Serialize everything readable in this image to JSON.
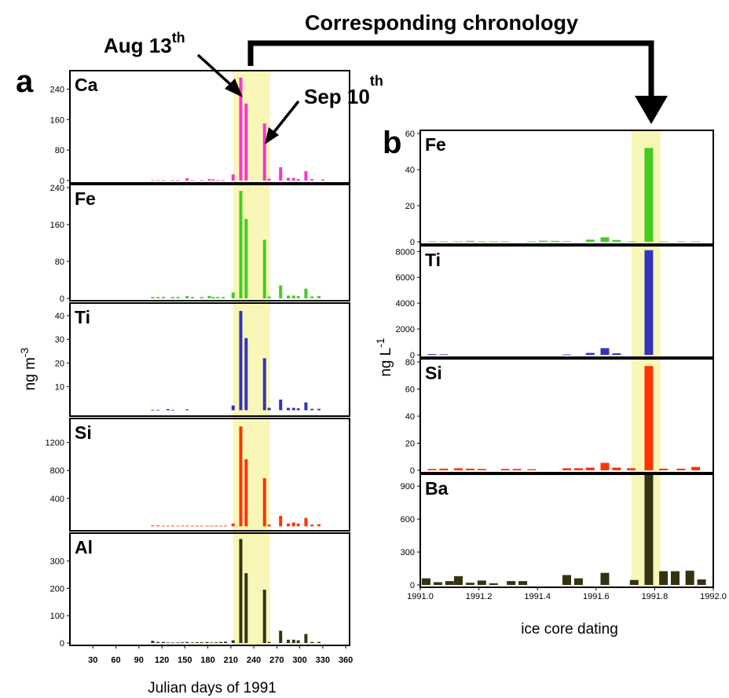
{
  "title": "Corresponding chronology",
  "annotations": {
    "aug": "Aug 13",
    "aug_sup": "th",
    "sep": "Sep 10",
    "sep_sup": "th"
  },
  "colors": {
    "Ca": "#ff33cc",
    "Fe": "#44cc22",
    "Ti": "#3333bb",
    "Si": "#ff3300",
    "Al": "#333311",
    "Ba": "#333311",
    "highlight": "#f9f7b8"
  },
  "chart_data": [
    {
      "panel": "a",
      "type": "bar",
      "xlabel": "Julian days of 1991",
      "ylabel": "ng m",
      "ylabel_sup": "-3",
      "xticks": [
        30,
        60,
        90,
        120,
        150,
        180,
        210,
        240,
        270,
        300,
        330,
        360
      ],
      "xlim": [
        0,
        365
      ],
      "highlight": [
        213,
        261
      ],
      "subplots": [
        {
          "element": "Ca",
          "ylim": [
            0,
            280
          ],
          "yticks": [
            0,
            80,
            160,
            240
          ],
          "data": [
            [
              108,
              1
            ],
            [
              115,
              1
            ],
            [
              122,
              1
            ],
            [
              134,
              1
            ],
            [
              141,
              1
            ],
            [
              153,
              6
            ],
            [
              160,
              1
            ],
            [
              172,
              1
            ],
            [
              182,
              4
            ],
            [
              187,
              3
            ],
            [
              193,
              1
            ],
            [
              200,
              1
            ],
            [
              213,
              16
            ],
            [
              223,
              270
            ],
            [
              230,
              202
            ],
            [
              254,
              150
            ],
            [
              260,
              5
            ],
            [
              275,
              35
            ],
            [
              285,
              7
            ],
            [
              292,
              7
            ],
            [
              298,
              4
            ],
            [
              308,
              25
            ],
            [
              316,
              4
            ],
            [
              330,
              3
            ]
          ]
        },
        {
          "element": "Fe",
          "ylim": [
            0,
            240
          ],
          "yticks": [
            0,
            80,
            160,
            240
          ],
          "data": [
            [
              108,
              3
            ],
            [
              115,
              3
            ],
            [
              122,
              3
            ],
            [
              134,
              3
            ],
            [
              141,
              3
            ],
            [
              153,
              5
            ],
            [
              160,
              3
            ],
            [
              172,
              3
            ],
            [
              182,
              5
            ],
            [
              187,
              3
            ],
            [
              193,
              3
            ],
            [
              200,
              3
            ],
            [
              213,
              13
            ],
            [
              223,
              233
            ],
            [
              230,
              172
            ],
            [
              254,
              127
            ],
            [
              260,
              4
            ],
            [
              275,
              28
            ],
            [
              285,
              6
            ],
            [
              292,
              6
            ],
            [
              298,
              5
            ],
            [
              308,
              21
            ],
            [
              316,
              4
            ],
            [
              325,
              5
            ]
          ]
        },
        {
          "element": "Ti",
          "ylim": [
            -1.5,
            44
          ],
          "yticks": [
            10,
            20,
            30,
            40
          ],
          "data": [
            [
              108,
              0.2
            ],
            [
              115,
              0.2
            ],
            [
              128,
              0.5
            ],
            [
              134,
              0.2
            ],
            [
              153,
              0.4
            ],
            [
              213,
              2
            ],
            [
              223,
              42
            ],
            [
              230,
              30.5
            ],
            [
              254,
              22
            ],
            [
              260,
              1
            ],
            [
              275,
              4.5
            ],
            [
              285,
              1
            ],
            [
              292,
              1
            ],
            [
              298,
              0.8
            ],
            [
              308,
              3.3
            ],
            [
              316,
              0.6
            ],
            [
              325,
              0.6
            ]
          ]
        },
        {
          "element": "Si",
          "ylim": [
            -30,
            1500
          ],
          "yticks": [
            400,
            800,
            1200
          ],
          "data": [
            [
              108,
              12
            ],
            [
              115,
              12
            ],
            [
              122,
              8
            ],
            [
              128,
              8
            ],
            [
              134,
              10
            ],
            [
              141,
              8
            ],
            [
              147,
              10
            ],
            [
              153,
              10
            ],
            [
              160,
              8
            ],
            [
              166,
              10
            ],
            [
              172,
              8
            ],
            [
              179,
              10
            ],
            [
              185,
              8
            ],
            [
              191,
              10
            ],
            [
              197,
              8
            ],
            [
              203,
              10
            ],
            [
              213,
              40
            ],
            [
              223,
              1430
            ],
            [
              230,
              960
            ],
            [
              254,
              690
            ],
            [
              260,
              25
            ],
            [
              275,
              150
            ],
            [
              285,
              40
            ],
            [
              292,
              55
            ],
            [
              298,
              40
            ],
            [
              308,
              120
            ],
            [
              316,
              25
            ],
            [
              325,
              30
            ]
          ]
        },
        {
          "element": "Al",
          "ylim": [
            0,
            390
          ],
          "yticks": [
            0,
            100,
            200,
            300
          ],
          "data": [
            [
              108,
              8
            ],
            [
              115,
              4
            ],
            [
              122,
              4
            ],
            [
              128,
              2
            ],
            [
              134,
              2
            ],
            [
              141,
              2
            ],
            [
              147,
              3
            ],
            [
              153,
              4
            ],
            [
              160,
              2
            ],
            [
              166,
              3
            ],
            [
              172,
              3
            ],
            [
              179,
              4
            ],
            [
              185,
              2
            ],
            [
              191,
              3
            ],
            [
              197,
              4
            ],
            [
              203,
              5
            ],
            [
              213,
              10
            ],
            [
              223,
              380
            ],
            [
              230,
              255
            ],
            [
              254,
              195
            ],
            [
              260,
              4
            ],
            [
              275,
              45
            ],
            [
              285,
              12
            ],
            [
              292,
              12
            ],
            [
              298,
              10
            ],
            [
              308,
              33
            ],
            [
              316,
              4
            ],
            [
              325,
              4
            ]
          ]
        }
      ]
    },
    {
      "panel": "b",
      "type": "bar",
      "xlabel": "ice core dating",
      "ylabel": "ng L",
      "ylabel_sup": "-1",
      "xticks": [
        "1991.0",
        "1991.2",
        "1991.4",
        "1991.6",
        "1991.8",
        "1992.0"
      ],
      "xlim": [
        1991.0,
        1992.0
      ],
      "highlight": [
        1991.72,
        1991.82
      ],
      "subplots": [
        {
          "element": "Fe",
          "ylim": [
            0,
            60
          ],
          "yticks": [
            0,
            20,
            40,
            60
          ],
          "data": [
            [
              1991.04,
              0.2
            ],
            [
              1991.08,
              0.2
            ],
            [
              1991.13,
              0.2
            ],
            [
              1991.17,
              0.5
            ],
            [
              1991.21,
              0.2
            ],
            [
              1991.25,
              0.2
            ],
            [
              1991.29,
              0.2
            ],
            [
              1991.38,
              0.2
            ],
            [
              1991.42,
              0.6
            ],
            [
              1991.46,
              0.5
            ],
            [
              1991.5,
              0.3
            ],
            [
              1991.58,
              1.2
            ],
            [
              1991.63,
              2.5
            ],
            [
              1991.67,
              1
            ],
            [
              1991.72,
              0.2
            ],
            [
              1991.78,
              52
            ],
            [
              1991.83,
              0.2
            ],
            [
              1991.89,
              0.2
            ],
            [
              1991.94,
              0.2
            ]
          ]
        },
        {
          "element": "Ti",
          "ylim": [
            0,
            8200
          ],
          "yticks": [
            0,
            2000,
            4000,
            6000,
            8000
          ],
          "data": [
            [
              1991.04,
              60
            ],
            [
              1991.08,
              40
            ],
            [
              1991.5,
              30
            ],
            [
              1991.58,
              150
            ],
            [
              1991.63,
              520
            ],
            [
              1991.67,
              120
            ],
            [
              1991.78,
              8100
            ]
          ]
        },
        {
          "element": "Si",
          "ylim": [
            0,
            80
          ],
          "yticks": [
            0,
            20,
            40,
            60,
            80
          ],
          "data": [
            [
              1991.04,
              1
            ],
            [
              1991.08,
              1.2
            ],
            [
              1991.13,
              1.5
            ],
            [
              1991.17,
              1.2
            ],
            [
              1991.21,
              1
            ],
            [
              1991.29,
              1
            ],
            [
              1991.33,
              1
            ],
            [
              1991.38,
              0.8
            ],
            [
              1991.5,
              1.5
            ],
            [
              1991.54,
              1.5
            ],
            [
              1991.58,
              2
            ],
            [
              1991.63,
              5.5
            ],
            [
              1991.67,
              2
            ],
            [
              1991.72,
              1.5
            ],
            [
              1991.78,
              77
            ],
            [
              1991.83,
              1.2
            ],
            [
              1991.89,
              1.2
            ],
            [
              1991.94,
              2.5
            ]
          ]
        },
        {
          "element": "Ba",
          "ylim": [
            0,
            980
          ],
          "yticks": [
            0,
            300,
            600,
            900
          ],
          "data": [
            [
              1991.02,
              60
            ],
            [
              1991.06,
              25
            ],
            [
              1991.1,
              35
            ],
            [
              1991.13,
              80
            ],
            [
              1991.17,
              20
            ],
            [
              1991.21,
              40
            ],
            [
              1991.25,
              15
            ],
            [
              1991.31,
              35
            ],
            [
              1991.35,
              35
            ],
            [
              1991.5,
              90
            ],
            [
              1991.54,
              60
            ],
            [
              1991.63,
              110
            ],
            [
              1991.73,
              45
            ],
            [
              1991.78,
              1020
            ],
            [
              1991.83,
              125
            ],
            [
              1991.87,
              125
            ],
            [
              1991.92,
              130
            ],
            [
              1991.96,
              50
            ]
          ]
        }
      ]
    }
  ]
}
